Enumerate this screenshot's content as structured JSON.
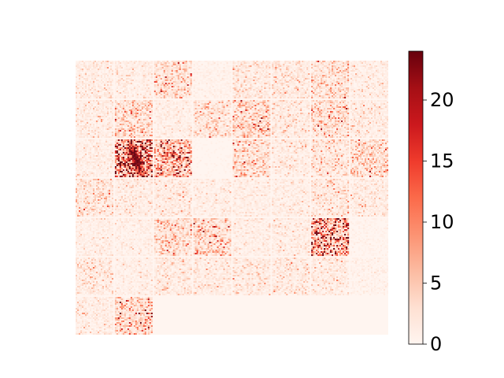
{
  "chart_data": {
    "type": "heatmap",
    "title": "",
    "xlabel": "",
    "ylabel": "",
    "axes_visible": false,
    "grid": false,
    "colormap": "Reds",
    "colormap_stops": [
      "#fff5f0",
      "#fee0d2",
      "#fcbba1",
      "#fc9272",
      "#fb6a4a",
      "#ef3b2c",
      "#cb181d",
      "#a50f15",
      "#67000d"
    ],
    "value_range": [
      0,
      24
    ],
    "colorbar": {
      "placement": "right",
      "ticks": [
        0,
        5,
        10,
        15,
        20
      ],
      "tick_labels": [
        "0",
        "5",
        "10",
        "15",
        "20"
      ]
    },
    "tile_grid": {
      "rows": 7,
      "cols": 8,
      "pixels_per_tile": 24,
      "filled_tiles": 50
    },
    "tile_mean_intensity": [
      [
        1.4,
        1.3,
        3.2,
        0.6,
        2.0,
        2.1,
        3.0,
        1.3
      ],
      [
        1.5,
        3.5,
        1.1,
        2.8,
        3.9,
        1.8,
        3.3,
        1.6
      ],
      [
        1.2,
        11.5,
        7.2,
        0.2,
        3.4,
        1.6,
        2.6,
        3.3
      ],
      [
        2.4,
        1.6,
        1.8,
        1.2,
        1.1,
        1.3,
        2.3,
        1.6
      ],
      [
        1.1,
        1.0,
        3.1,
        3.8,
        1.2,
        1.4,
        9.0,
        0.4
      ],
      [
        1.8,
        1.1,
        1.8,
        1.7,
        1.9,
        1.9,
        1.7,
        0.6
      ],
      [
        1.4,
        4.2,
        0.0,
        0.0,
        0.0,
        0.0,
        0.0,
        0.0
      ]
    ],
    "peak": {
      "tile_row": 2,
      "tile_col": 1,
      "value": 24
    }
  }
}
